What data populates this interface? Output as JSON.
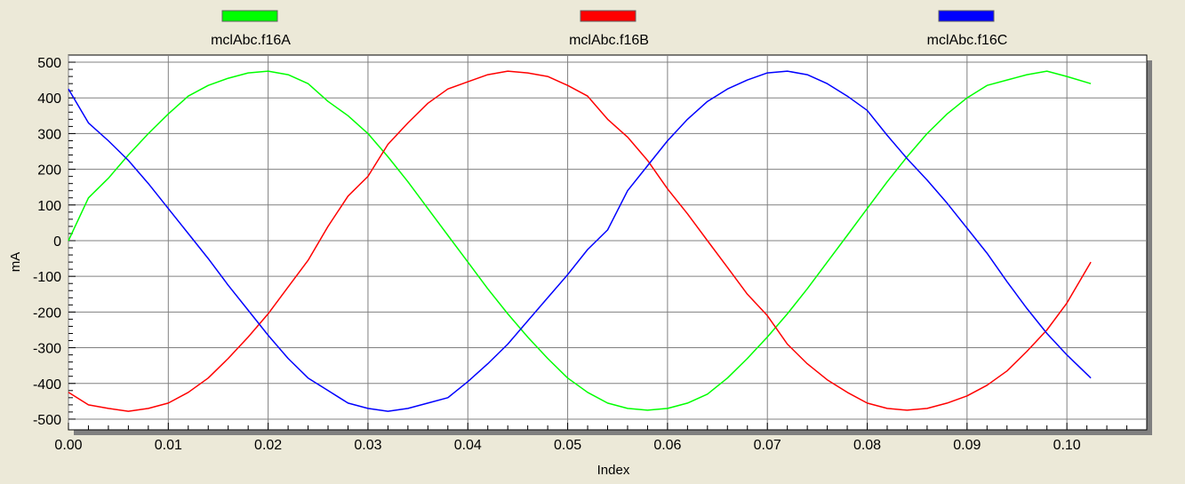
{
  "chart_data": {
    "type": "line",
    "xlabel": "Index",
    "ylabel": "mA",
    "xlim": [
      0,
      0.108
    ],
    "ylim": [
      -530,
      520
    ],
    "grid": true,
    "legend_position": "top",
    "x_ticks": [
      0,
      0.01,
      0.02,
      0.03,
      0.04,
      0.05,
      0.06,
      0.07,
      0.08,
      0.09,
      0.1
    ],
    "x_tick_labels": [
      "0.00",
      "0.01",
      "0.02",
      "0.03",
      "0.04",
      "0.05",
      "0.06",
      "0.07",
      "0.08",
      "0.09",
      "0.10"
    ],
    "y_ticks": [
      500,
      400,
      300,
      200,
      100,
      0,
      -100,
      -200,
      -300,
      -400,
      -500
    ],
    "y_tick_labels": [
      "500",
      "400",
      "300",
      "200",
      "100",
      "0",
      "-100",
      "-200",
      "-300",
      "-400",
      "-500"
    ],
    "x": [
      0,
      0.002,
      0.004,
      0.006,
      0.008,
      0.01,
      0.012,
      0.014,
      0.016,
      0.018,
      0.02,
      0.022,
      0.024,
      0.026,
      0.028,
      0.03,
      0.032,
      0.034,
      0.036,
      0.038,
      0.04,
      0.042,
      0.044,
      0.046,
      0.048,
      0.05,
      0.052,
      0.054,
      0.056,
      0.058,
      0.06,
      0.062,
      0.064,
      0.066,
      0.068,
      0.07,
      0.072,
      0.074,
      0.076,
      0.078,
      0.08,
      0.082,
      0.084,
      0.086,
      0.088,
      0.09,
      0.092,
      0.094,
      0.096,
      0.098,
      0.1,
      0.1024
    ],
    "series": [
      {
        "name": "mclAbc.f16A",
        "color": "#00ff00",
        "values": [
          0,
          120,
          175,
          240,
          300,
          355,
          405,
          435,
          455,
          470,
          475,
          465,
          440,
          390,
          350,
          300,
          235,
          165,
          90,
          15,
          -60,
          -135,
          -205,
          -270,
          -330,
          -385,
          -425,
          -455,
          -470,
          -475,
          -470,
          -455,
          -430,
          -385,
          -330,
          -270,
          -205,
          -135,
          -60,
          15,
          90,
          165,
          235,
          300,
          355,
          400,
          435,
          450,
          465,
          475,
          460,
          440
        ]
      },
      {
        "name": "mclAbc.f16B",
        "color": "#ff0000",
        "values": [
          -425,
          -460,
          -470,
          -478,
          -470,
          -455,
          -425,
          -385,
          -330,
          -270,
          -205,
          -130,
          -55,
          40,
          125,
          180,
          270,
          330,
          385,
          425,
          445,
          465,
          475,
          470,
          460,
          435,
          405,
          340,
          290,
          225,
          145,
          75,
          0,
          -75,
          -150,
          -210,
          -290,
          -345,
          -390,
          -425,
          -455,
          -470,
          -475,
          -470,
          -455,
          -435,
          -405,
          -365,
          -310,
          -250,
          -175,
          -60
        ]
      },
      {
        "name": "mclAbc.f16C",
        "color": "#0000ff",
        "values": [
          425,
          330,
          280,
          225,
          160,
          90,
          20,
          -50,
          -125,
          -195,
          -265,
          -330,
          -385,
          -420,
          -455,
          -470,
          -478,
          -470,
          -455,
          -440,
          -395,
          -345,
          -290,
          -225,
          -160,
          -95,
          -25,
          30,
          140,
          210,
          280,
          340,
          390,
          425,
          450,
          470,
          475,
          465,
          440,
          405,
          365,
          295,
          230,
          170,
          105,
          35,
          -35,
          -115,
          -190,
          -260,
          -320,
          -385
        ]
      }
    ]
  }
}
